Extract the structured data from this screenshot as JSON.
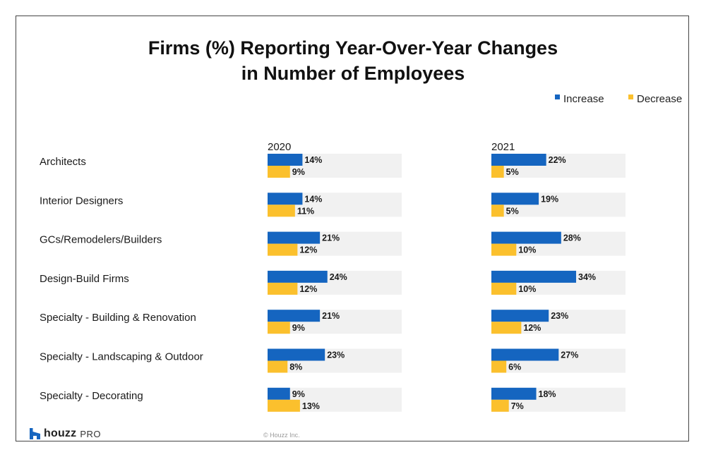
{
  "chart_data": {
    "type": "bar",
    "title_lines": [
      "Firms (%) Reporting Year-Over-Year Changes",
      "in Number of Employees"
    ],
    "categories": [
      "Architects",
      "Interior Designers",
      "GCs/Remodelers/Builders",
      "Design-Build Firms",
      "Specialty - Building & Renovation",
      "Specialty - Landscaping & Outdoor",
      "Specialty - Decorating"
    ],
    "panels": [
      {
        "label": "2020",
        "series": [
          {
            "name": "Increase",
            "values": [
              14,
              14,
              21,
              24,
              21,
              23,
              9
            ]
          },
          {
            "name": "Decrease",
            "values": [
              9,
              11,
              12,
              12,
              9,
              8,
              13
            ]
          }
        ]
      },
      {
        "label": "2021",
        "series": [
          {
            "name": "Increase",
            "values": [
              22,
              19,
              28,
              34,
              23,
              27,
              18
            ]
          },
          {
            "name": "Decrease",
            "values": [
              5,
              5,
              10,
              10,
              12,
              6,
              7
            ]
          }
        ]
      }
    ],
    "value_suffix": "%",
    "xlim": [
      0,
      50
    ],
    "orientation": "horizontal",
    "legend_position": "top-right",
    "colors": {
      "Increase": "#1565C0",
      "Decrease": "#FBC02D",
      "track": "#F1F1F1"
    }
  },
  "legend": {
    "increase": "Increase",
    "decrease": "Decrease"
  },
  "brand": {
    "name": "houzz",
    "suffix": "PRO"
  },
  "copyright": "© Houzz Inc."
}
